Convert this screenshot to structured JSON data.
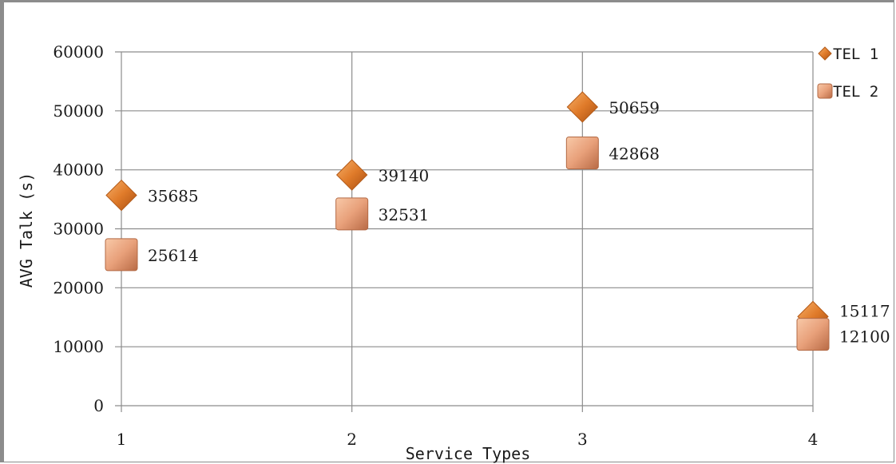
{
  "chart_data": {
    "type": "scatter",
    "title": "",
    "xlabel": "Service Types",
    "ylabel": "AVG Talk (s)",
    "x_ticks": [
      "1",
      "2",
      "3",
      "4"
    ],
    "y_ticks": [
      "0",
      "10000",
      "20000",
      "30000",
      "40000",
      "50000",
      "60000"
    ],
    "xlim": [
      1,
      4
    ],
    "ylim": [
      0,
      60000
    ],
    "grid": true,
    "legend_position": "top-right",
    "series": [
      {
        "name": "TEL 1",
        "marker": "diamond",
        "color": "#e07b2a",
        "x": [
          1,
          2,
          3,
          4
        ],
        "values": [
          35685,
          39140,
          50659,
          15117
        ],
        "labels": [
          "35685",
          "39140",
          "50659",
          "15117"
        ]
      },
      {
        "name": "TEL 2",
        "marker": "square",
        "color": "#e8a07a",
        "x": [
          1,
          2,
          3,
          4
        ],
        "values": [
          25614,
          32531,
          42868,
          12100
        ],
        "labels": [
          "25614",
          "32531",
          "42868",
          "12100"
        ]
      }
    ]
  }
}
